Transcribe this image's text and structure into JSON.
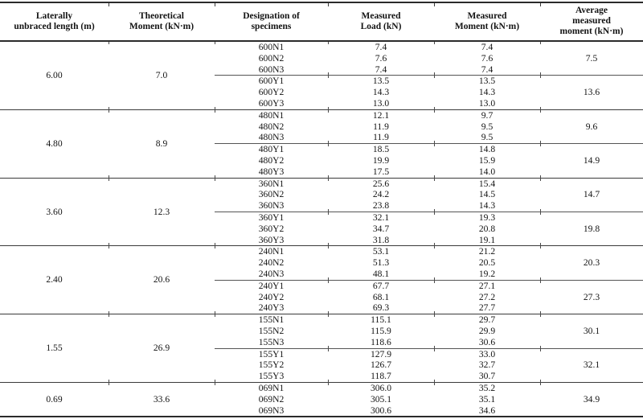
{
  "table": {
    "columns": [
      {
        "label": "Laterally\nunbraced length (m)"
      },
      {
        "label": "Theoretical\nMoment (kN·m)"
      },
      {
        "label": "Designation of\nspecimens"
      },
      {
        "label": "Measured\nLoad (kN)"
      },
      {
        "label": "Measured\nMoment (kN·m)"
      },
      {
        "label": "Average\nmeasured\nmoment (kN·m)"
      }
    ],
    "sections": [
      {
        "unbraced_length": "6.00",
        "theoretical_moment": "7.0",
        "subgroups": [
          {
            "average_moment": "7.5",
            "specimens": [
              {
                "designation": "600N1",
                "load": "7.4",
                "moment": "7.4"
              },
              {
                "designation": "600N2",
                "load": "7.6",
                "moment": "7.6"
              },
              {
                "designation": "600N3",
                "load": "7.4",
                "moment": "7.4"
              }
            ]
          },
          {
            "average_moment": "13.6",
            "specimens": [
              {
                "designation": "600Y1",
                "load": "13.5",
                "moment": "13.5"
              },
              {
                "designation": "600Y2",
                "load": "14.3",
                "moment": "14.3"
              },
              {
                "designation": "600Y3",
                "load": "13.0",
                "moment": "13.0"
              }
            ]
          }
        ]
      },
      {
        "unbraced_length": "4.80",
        "theoretical_moment": "8.9",
        "subgroups": [
          {
            "average_moment": "9.6",
            "specimens": [
              {
                "designation": "480N1",
                "load": "12.1",
                "moment": "9.7"
              },
              {
                "designation": "480N2",
                "load": "11.9",
                "moment": "9.5"
              },
              {
                "designation": "480N3",
                "load": "11.9",
                "moment": "9.5"
              }
            ]
          },
          {
            "average_moment": "14.9",
            "specimens": [
              {
                "designation": "480Y1",
                "load": "18.5",
                "moment": "14.8"
              },
              {
                "designation": "480Y2",
                "load": "19.9",
                "moment": "15.9"
              },
              {
                "designation": "480Y3",
                "load": "17.5",
                "moment": "14.0"
              }
            ]
          }
        ]
      },
      {
        "unbraced_length": "3.60",
        "theoretical_moment": "12.3",
        "subgroups": [
          {
            "average_moment": "14.7",
            "specimens": [
              {
                "designation": "360N1",
                "load": "25.6",
                "moment": "15.4"
              },
              {
                "designation": "360N2",
                "load": "24.2",
                "moment": "14.5"
              },
              {
                "designation": "360N3",
                "load": "23.8",
                "moment": "14.3"
              }
            ]
          },
          {
            "average_moment": "19.8",
            "specimens": [
              {
                "designation": "360Y1",
                "load": "32.1",
                "moment": "19.3"
              },
              {
                "designation": "360Y2",
                "load": "34.7",
                "moment": "20.8"
              },
              {
                "designation": "360Y3",
                "load": "31.8",
                "moment": "19.1"
              }
            ]
          }
        ]
      },
      {
        "unbraced_length": "2.40",
        "theoretical_moment": "20.6",
        "subgroups": [
          {
            "average_moment": "20.3",
            "specimens": [
              {
                "designation": "240N1",
                "load": "53.1",
                "moment": "21.2"
              },
              {
                "designation": "240N2",
                "load": "51.3",
                "moment": "20.5"
              },
              {
                "designation": "240N3",
                "load": "48.1",
                "moment": "19.2"
              }
            ]
          },
          {
            "average_moment": "27.3",
            "specimens": [
              {
                "designation": "240Y1",
                "load": "67.7",
                "moment": "27.1"
              },
              {
                "designation": "240Y2",
                "load": "68.1",
                "moment": "27.2"
              },
              {
                "designation": "240Y3",
                "load": "69.3",
                "moment": "27.7"
              }
            ]
          }
        ]
      },
      {
        "unbraced_length": "1.55",
        "theoretical_moment": "26.9",
        "subgroups": [
          {
            "average_moment": "30.1",
            "specimens": [
              {
                "designation": "155N1",
                "load": "115.1",
                "moment": "29.7"
              },
              {
                "designation": "155N2",
                "load": "115.9",
                "moment": "29.9"
              },
              {
                "designation": "155N3",
                "load": "118.6",
                "moment": "30.6"
              }
            ]
          },
          {
            "average_moment": "32.1",
            "specimens": [
              {
                "designation": "155Y1",
                "load": "127.9",
                "moment": "33.0"
              },
              {
                "designation": "155Y2",
                "load": "126.7",
                "moment": "32.7"
              },
              {
                "designation": "155Y3",
                "load": "118.7",
                "moment": "30.7"
              }
            ]
          }
        ]
      },
      {
        "unbraced_length": "0.69",
        "theoretical_moment": "33.6",
        "subgroups": [
          {
            "average_moment": "34.9",
            "specimens": [
              {
                "designation": "069N1",
                "load": "306.0",
                "moment": "35.2"
              },
              {
                "designation": "069N2",
                "load": "305.1",
                "moment": "35.1"
              },
              {
                "designation": "069N3",
                "load": "300.6",
                "moment": "34.6"
              }
            ]
          }
        ]
      }
    ]
  }
}
